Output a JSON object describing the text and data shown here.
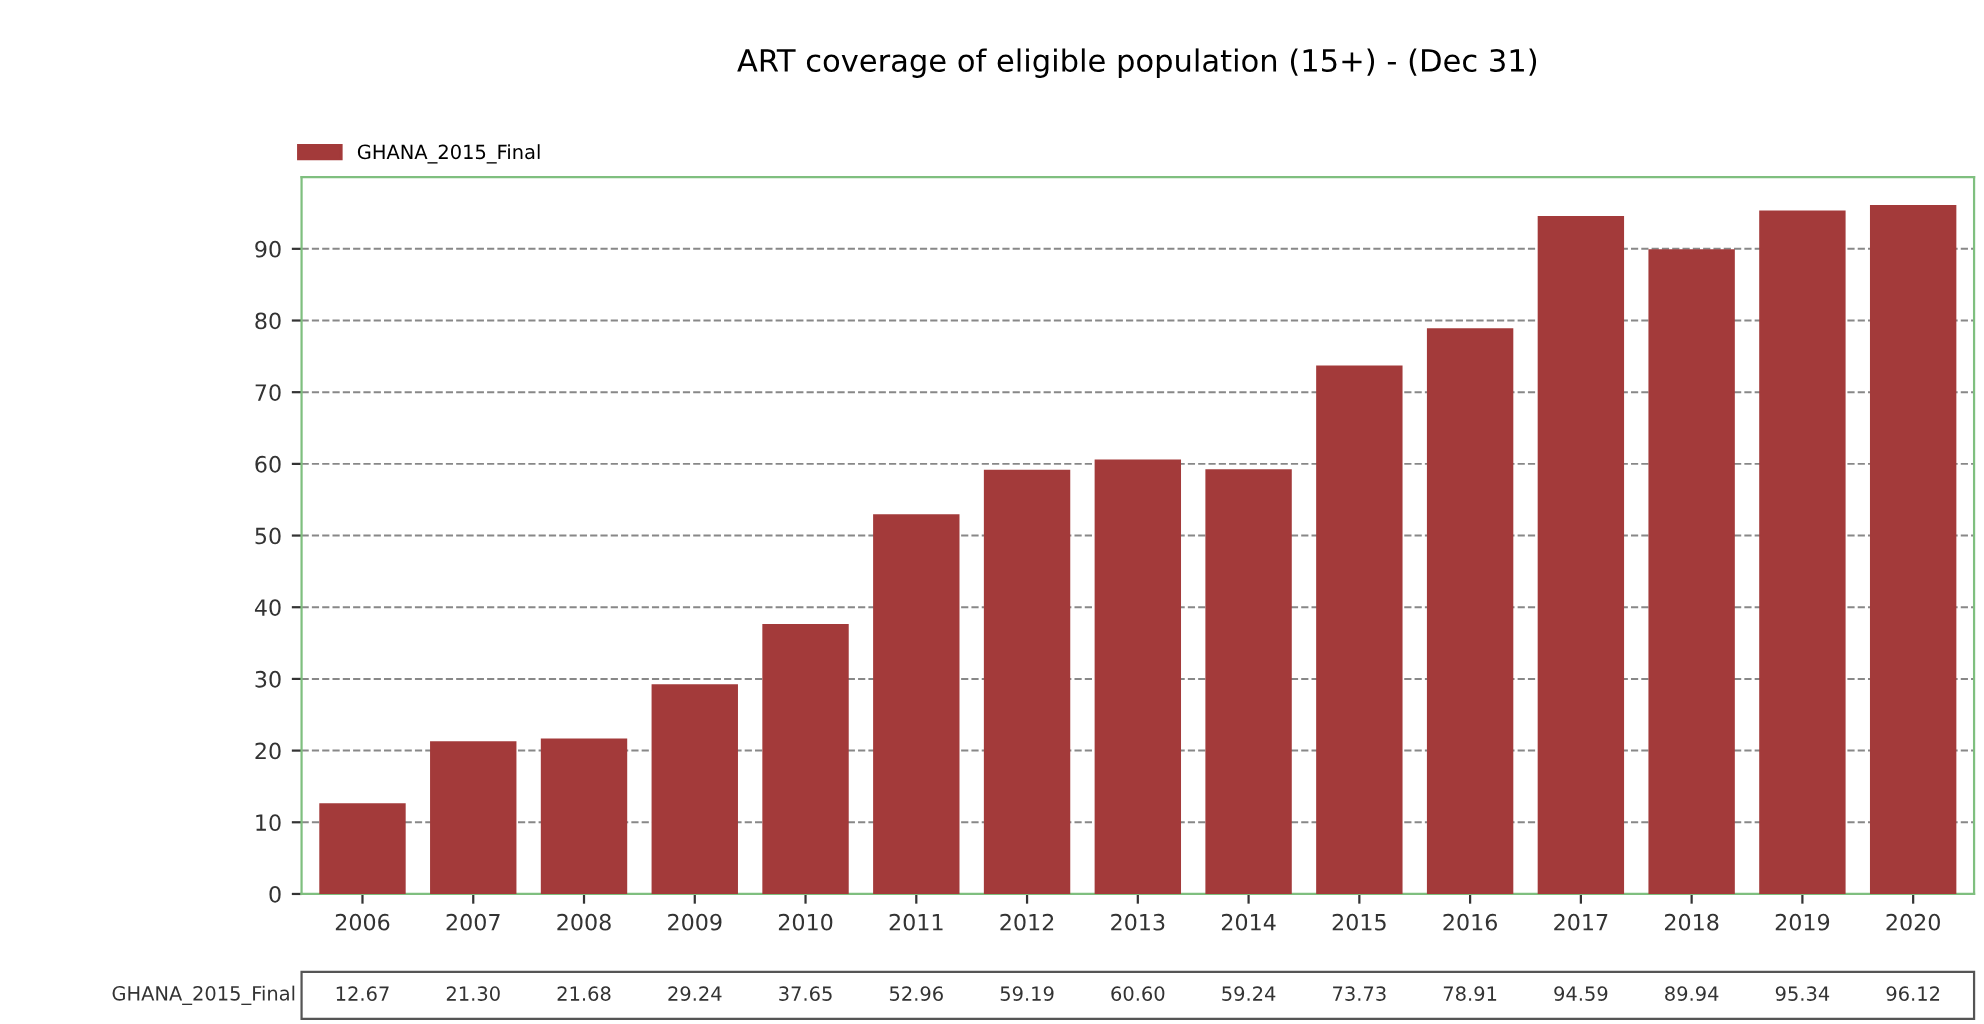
{
  "chart_data": {
    "type": "bar",
    "title": "ART coverage of eligible population (15+) - (Dec 31)",
    "categories": [
      "2006",
      "2007",
      "2008",
      "2009",
      "2010",
      "2011",
      "2012",
      "2013",
      "2014",
      "2015",
      "2016",
      "2017",
      "2018",
      "2019",
      "2020"
    ],
    "series": [
      {
        "name": "GHANA_2015_Final",
        "color": "#a33a3a",
        "values": [
          12.67,
          21.3,
          21.68,
          29.24,
          37.65,
          52.96,
          59.19,
          60.6,
          59.24,
          73.73,
          78.91,
          94.59,
          89.94,
          95.34,
          96.12
        ],
        "value_labels": [
          "12.67",
          "21.30",
          "21.68",
          "29.24",
          "37.65",
          "52.96",
          "59.19",
          "60.60",
          "59.24",
          "73.73",
          "78.91",
          "94.59",
          "89.94",
          "95.34",
          "96.12"
        ]
      }
    ],
    "ylim": [
      0,
      100
    ],
    "yticks": [
      0,
      10,
      20,
      30,
      40,
      50,
      60,
      70,
      80,
      90
    ],
    "grid": "y",
    "legend": "top left"
  }
}
